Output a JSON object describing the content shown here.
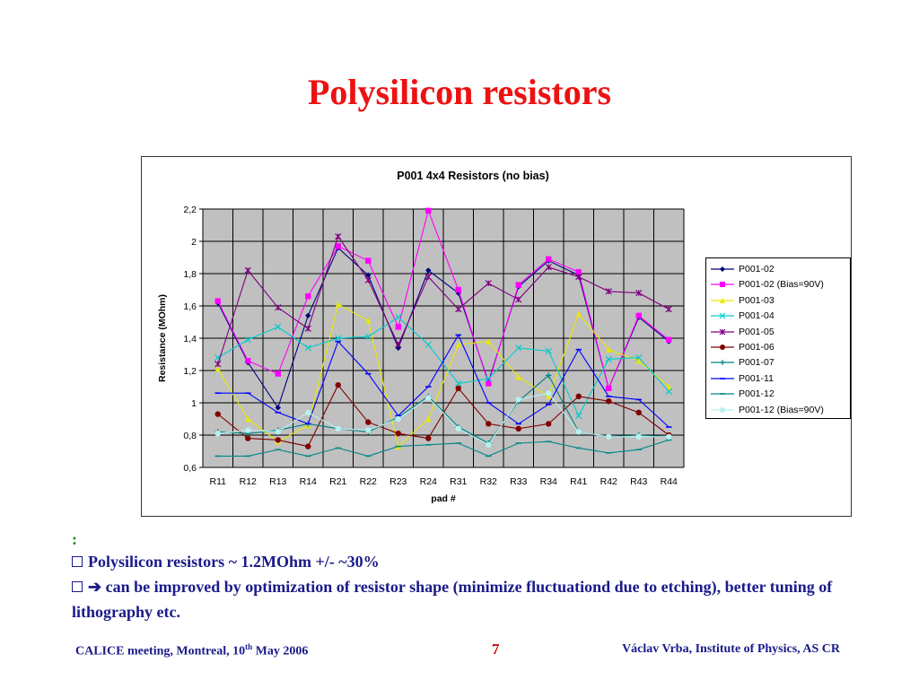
{
  "slide": {
    "title": "Polysilicon resistors",
    "colon": ":",
    "bullet1": "Polysilicon resistors ~ 1.2MOhm +/- ~30%",
    "bullet2_arrow": "➔",
    "bullet2": "can be improved by optimization of resistor shape (minimize fluctuationd due to etching), better tuning of lithography etc.",
    "footer_left_pre": "CALICE meeting, Montreal, 10",
    "footer_left_sup": "th",
    "footer_left_post": " May 2006",
    "page_number": "7",
    "footer_right": "Václav Vrba, Institute of Physics, AS CR",
    "text_color": "#1a1a8a",
    "title_color": "#ee1111"
  },
  "chart_data": {
    "type": "line",
    "title": "P001 4x4 Resistors (no bias)",
    "xlabel": "pad #",
    "ylabel": "Resistance (MOhm)",
    "ylim": [
      0.6,
      2.2
    ],
    "yticks": [
      "0,6",
      "0,8",
      "1",
      "1,2",
      "1,4",
      "1,6",
      "1,8",
      "2",
      "2,2"
    ],
    "grid": true,
    "plot_background": "#c0c0c0",
    "legend_position": "right",
    "categories": [
      "R11",
      "R12",
      "R13",
      "R14",
      "R21",
      "R22",
      "R23",
      "R24",
      "R31",
      "R32",
      "R33",
      "R34",
      "R41",
      "R42",
      "R43",
      "R44"
    ],
    "series": [
      {
        "name": "P001-02",
        "color": "#000080",
        "marker": "diamond",
        "values": [
          1.62,
          1.25,
          0.97,
          1.54,
          1.96,
          1.79,
          1.34,
          1.82,
          1.68,
          1.13,
          1.72,
          1.88,
          1.79,
          1.09,
          1.53,
          1.38
        ]
      },
      {
        "name": "P001-02 (Bias=90V)",
        "color": "#ff00ff",
        "marker": "square",
        "values": [
          1.63,
          1.26,
          1.18,
          1.66,
          1.97,
          1.88,
          1.47,
          2.19,
          1.7,
          1.12,
          1.73,
          1.89,
          1.81,
          1.09,
          1.54,
          1.39
        ]
      },
      {
        "name": "P001-03",
        "color": "#e8e800",
        "marker": "triangle",
        "values": [
          1.21,
          0.9,
          0.76,
          0.86,
          1.61,
          1.51,
          0.73,
          0.9,
          1.36,
          1.38,
          1.16,
          1.04,
          1.55,
          1.33,
          1.26,
          1.1
        ]
      },
      {
        "name": "P001-04",
        "color": "#00cccc",
        "marker": "x",
        "values": [
          1.28,
          1.39,
          1.47,
          1.34,
          1.4,
          1.41,
          1.53,
          1.36,
          1.12,
          1.15,
          1.34,
          1.32,
          0.92,
          1.27,
          1.28,
          1.07
        ]
      },
      {
        "name": "P001-05",
        "color": "#800080",
        "marker": "star",
        "values": [
          1.24,
          1.82,
          1.59,
          1.46,
          2.03,
          1.76,
          1.36,
          1.78,
          1.58,
          1.74,
          1.64,
          1.84,
          1.78,
          1.69,
          1.68,
          1.58
        ]
      },
      {
        "name": "P001-06",
        "color": "#800000",
        "marker": "circle",
        "values": [
          0.93,
          0.78,
          0.77,
          0.73,
          1.11,
          0.88,
          0.81,
          0.78,
          1.09,
          0.87,
          0.84,
          0.87,
          1.04,
          1.01,
          0.94,
          0.8
        ]
      },
      {
        "name": "P001-07",
        "color": "#008080",
        "marker": "plus",
        "values": [
          0.82,
          0.81,
          0.83,
          0.87,
          0.84,
          0.82,
          0.91,
          1.04,
          0.85,
          0.75,
          1.01,
          1.17,
          0.82,
          0.79,
          0.8,
          0.79
        ]
      },
      {
        "name": "P001-11",
        "color": "#0000ff",
        "marker": "dash",
        "values": [
          1.06,
          1.06,
          0.94,
          0.87,
          1.38,
          1.18,
          0.92,
          1.1,
          1.42,
          1.0,
          0.87,
          0.99,
          1.33,
          1.04,
          1.02,
          0.85
        ]
      },
      {
        "name": "P001-12",
        "color": "#008888",
        "marker": "dash",
        "values": [
          0.67,
          0.67,
          0.71,
          0.67,
          0.72,
          0.67,
          0.73,
          0.74,
          0.75,
          0.67,
          0.75,
          0.76,
          0.72,
          0.69,
          0.71,
          0.77
        ]
      },
      {
        "name": "P001-12 (Bias=90V)",
        "color": "#b8f0f0",
        "marker": "circle",
        "values": [
          0.81,
          0.83,
          0.82,
          0.94,
          0.84,
          0.83,
          0.9,
          1.03,
          0.84,
          0.74,
          1.02,
          1.06,
          0.82,
          0.79,
          0.79,
          0.79
        ]
      }
    ]
  }
}
